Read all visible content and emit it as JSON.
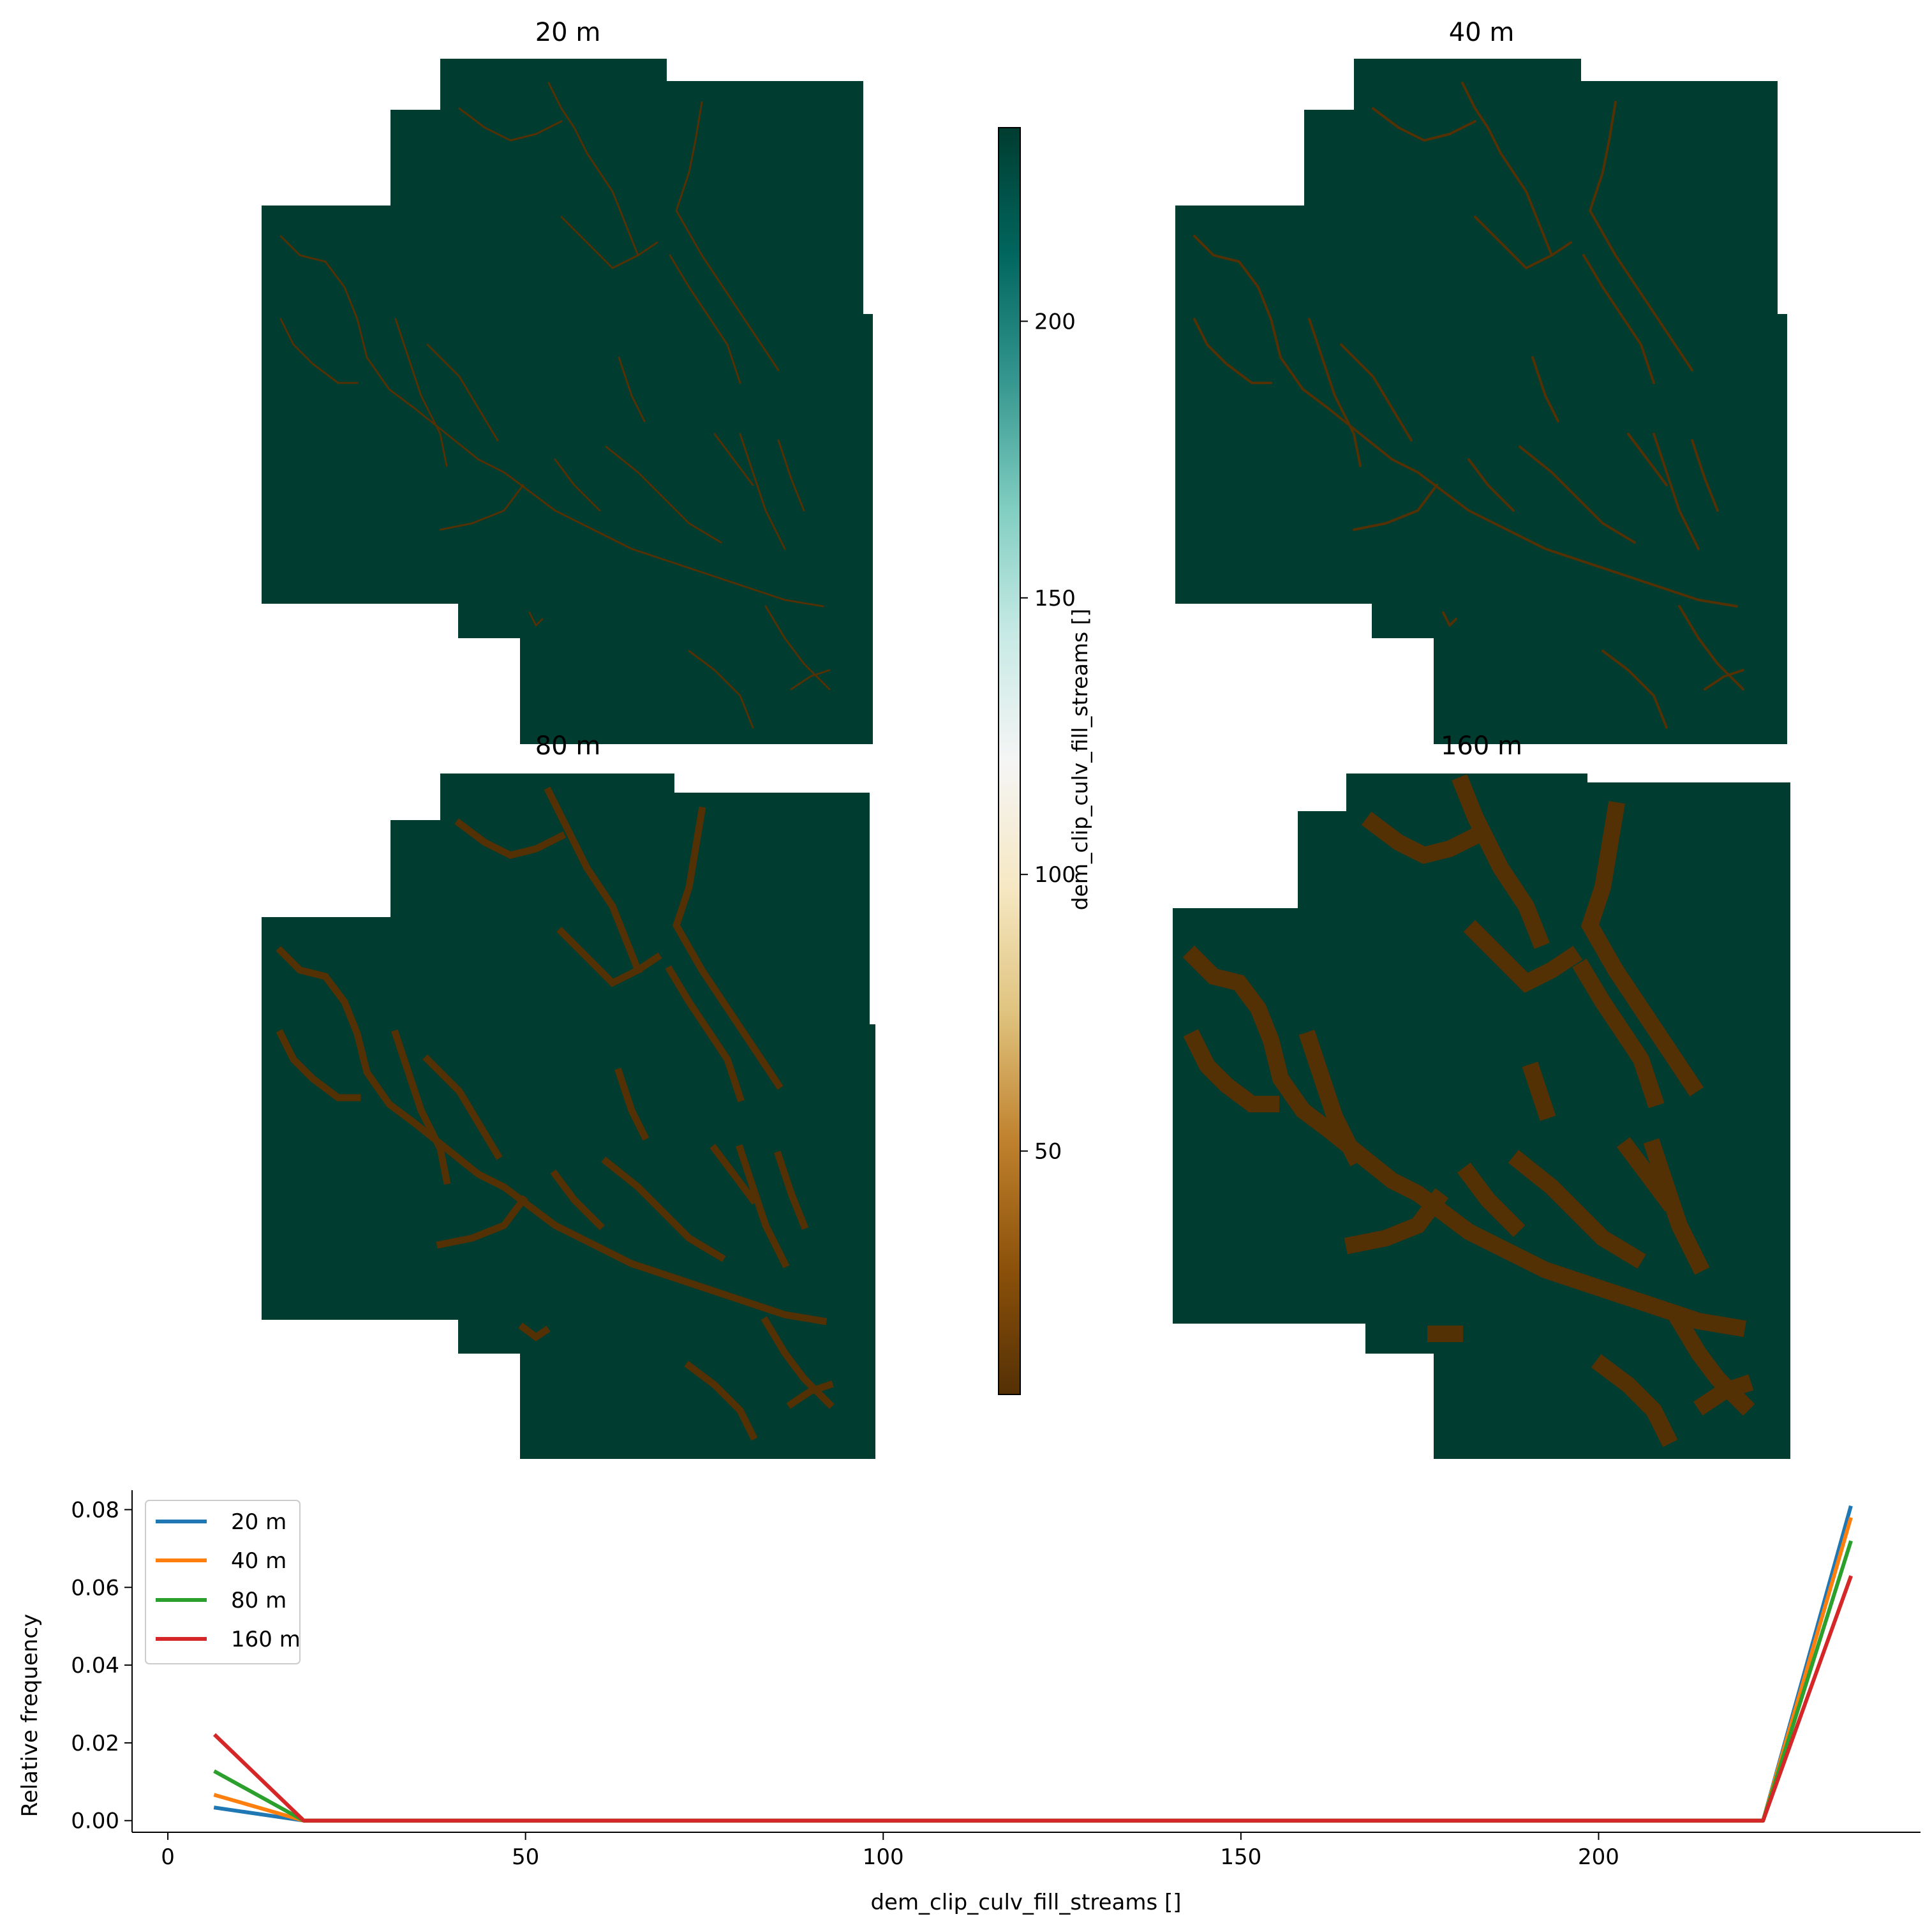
{
  "chart_data": [
    {
      "type": "heatmap",
      "title": "20 m",
      "values_present": [
        6,
        235
      ],
      "description_colors": {
        "stream": "#543005",
        "background": "#003c30"
      }
    },
    {
      "type": "heatmap",
      "title": "40 m",
      "values_present": [
        6,
        235
      ],
      "description_colors": {
        "stream": "#543005",
        "background": "#003c30"
      }
    },
    {
      "type": "heatmap",
      "title": "80 m",
      "values_present": [
        6,
        235
      ],
      "description_colors": {
        "stream": "#543005",
        "background": "#003c30"
      }
    },
    {
      "type": "heatmap",
      "title": "160 m",
      "values_present": [
        6,
        235
      ],
      "description_colors": {
        "stream": "#543005",
        "background": "#003c30"
      }
    },
    {
      "type": "colorbar",
      "label": "dem_clip_culv_fill_streams []",
      "colormap": "BrBG",
      "ticks": [
        50,
        100,
        150,
        200
      ],
      "range": [
        6,
        235
      ]
    },
    {
      "type": "line",
      "xlabel": "dem_clip_culv_fill_streams []",
      "ylabel": "Relative frequency",
      "xlim": [
        -5,
        245
      ],
      "ylim": [
        -0.003,
        0.085
      ],
      "xticks": [
        0,
        50,
        100,
        150,
        200
      ],
      "yticks": [
        0.0,
        0.02,
        0.04,
        0.06,
        0.08
      ],
      "ytick_labels": [
        "0.00",
        "0.02",
        "0.04",
        "0.06",
        "0.08"
      ],
      "legend_position": "upper-left",
      "x": [
        6.7,
        19,
        223,
        235.2
      ],
      "series": [
        {
          "name": "20 m",
          "color": "#1f77b4",
          "values": [
            0.0033,
            0.0,
            0.0,
            0.0805
          ]
        },
        {
          "name": "40 m",
          "color": "#ff7f0e",
          "values": [
            0.0065,
            0.0,
            0.0,
            0.0775
          ]
        },
        {
          "name": "80 m",
          "color": "#2ca02c",
          "values": [
            0.0125,
            0.0,
            0.0,
            0.0715
          ]
        },
        {
          "name": "160 m",
          "color": "#d62728",
          "values": [
            0.0218,
            0.0,
            0.0,
            0.0625
          ]
        }
      ]
    }
  ]
}
